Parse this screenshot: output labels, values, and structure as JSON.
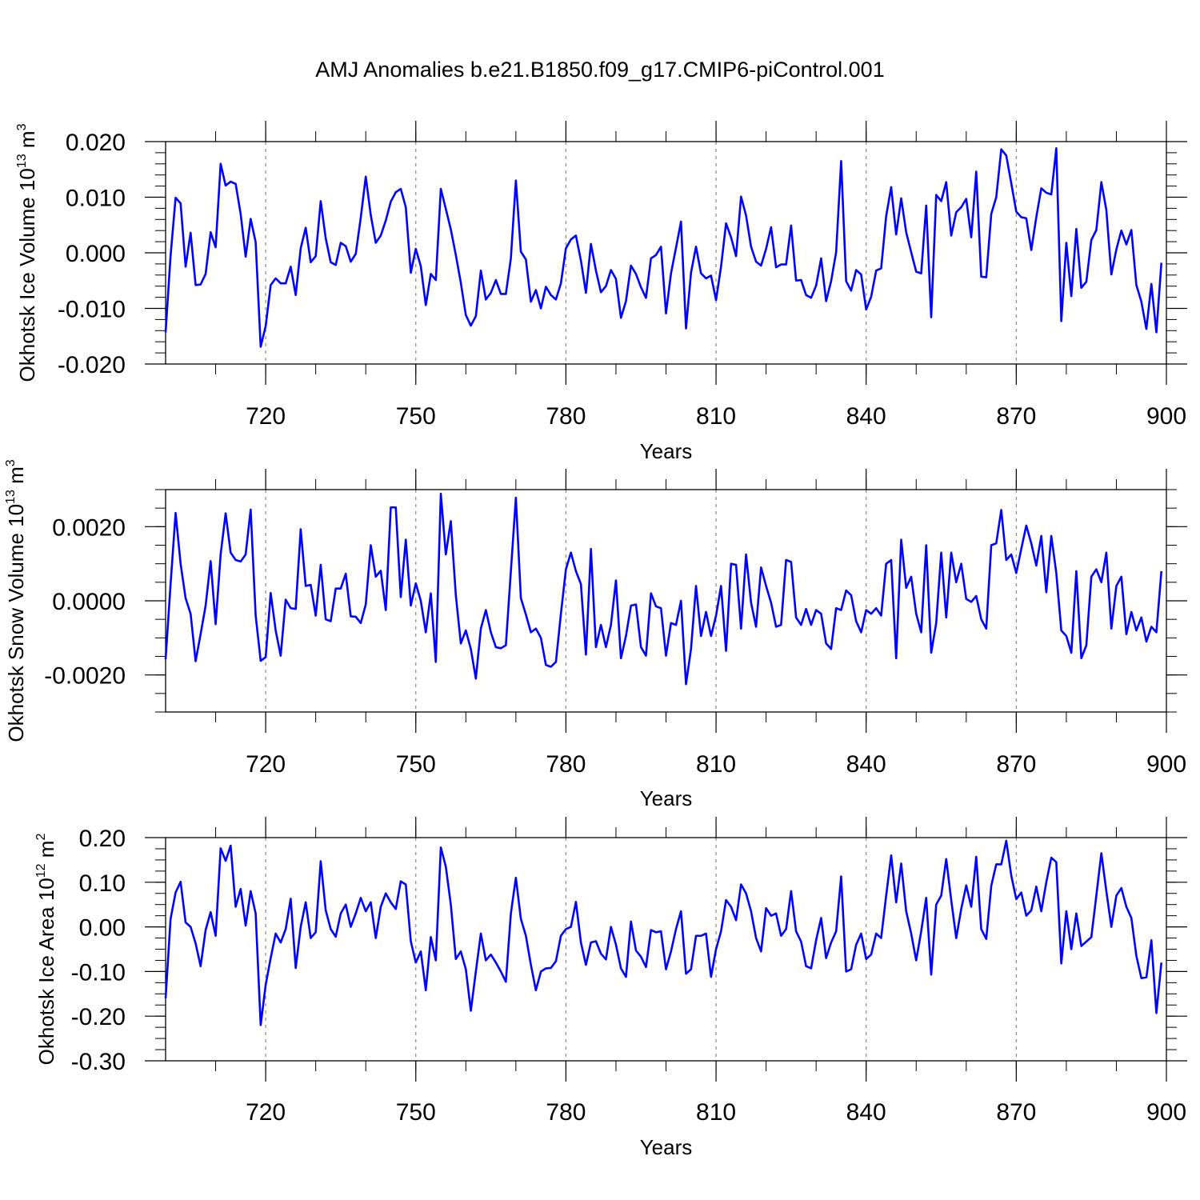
{
  "title": "AMJ Anomalies b.e21.B1850.f09_g17.CMIP6-piControl.001",
  "line_color": "#0000ff",
  "chart_data": [
    {
      "type": "line",
      "ylabel": "Okhotsk Ice Volume 10",
      "ylabel_exp": "13",
      "ylabel_unit": " m",
      "ylabel_unit_exp": "3",
      "xlabel": "Years",
      "xlim": [
        700,
        900
      ],
      "ylim": [
        -0.02,
        0.02
      ],
      "x_ticks": [
        "720",
        "750",
        "780",
        "810",
        "840",
        "870",
        "900"
      ],
      "y_ticks": [
        "0.020",
        "0.010",
        "0.000",
        "-0.010",
        "-0.020"
      ],
      "x_start": 700,
      "values": [
        -0.0143,
        -0.0005,
        0.0099,
        0.0089,
        -0.0025,
        0.0036,
        -0.0058,
        -0.0057,
        -0.0038,
        0.0037,
        0.001,
        0.016,
        0.0121,
        0.0128,
        0.0124,
        0.007,
        -0.0007,
        0.0061,
        0.0019,
        -0.0169,
        -0.0132,
        -0.0058,
        -0.0046,
        -0.0055,
        -0.0055,
        -0.0025,
        -0.0076,
        0.0008,
        0.0045,
        -0.0017,
        -0.0006,
        0.0093,
        0.0026,
        -0.0017,
        -0.0022,
        0.0018,
        0.0012,
        -0.0016,
        -0.0002,
        0.0063,
        0.0137,
        0.0068,
        0.0018,
        0.0031,
        0.0058,
        0.0092,
        0.0109,
        0.0115,
        0.0082,
        -0.0036,
        0.0007,
        -0.0024,
        -0.0094,
        -0.0038,
        -0.0049,
        0.0115,
        0.0079,
        0.0042,
        -0.0004,
        -0.0054,
        -0.0112,
        -0.0131,
        -0.0114,
        -0.0032,
        -0.0084,
        -0.0072,
        -0.0049,
        -0.0074,
        -0.0074,
        -0.001,
        0.013,
        0.0002,
        -0.0012,
        -0.0088,
        -0.0067,
        -0.01,
        -0.0061,
        -0.0076,
        -0.0084,
        -0.0055,
        0.0008,
        0.0024,
        0.0031,
        -0.0014,
        -0.0072,
        0.0016,
        -0.0032,
        -0.0071,
        -0.006,
        -0.0031,
        -0.0047,
        -0.0117,
        -0.0087,
        -0.0023,
        -0.0038,
        -0.0062,
        -0.0081,
        -0.001,
        -0.0004,
        0.0011,
        -0.0109,
        -0.0037,
        0.0009,
        0.0056,
        -0.0136,
        -0.0036,
        0.0011,
        -0.0037,
        -0.0046,
        -0.0041,
        -0.0085,
        -0.0025,
        0.0053,
        0.0028,
        -0.0006,
        0.0101,
        0.0067,
        0.0011,
        -0.0016,
        -0.0023,
        0.0007,
        0.0046,
        -0.0026,
        -0.0021,
        -0.0021,
        0.0049,
        -0.005,
        -0.0049,
        -0.0076,
        -0.0081,
        -0.0059,
        -0.001,
        -0.0087,
        -0.0051,
        0.0001,
        0.0165,
        -0.0051,
        -0.0068,
        -0.0031,
        -0.0039,
        -0.0102,
        -0.0079,
        -0.0032,
        -0.0028,
        0.0066,
        0.0118,
        0.0033,
        0.0098,
        0.0037,
        0.0001,
        -0.0034,
        -0.0037,
        0.0085,
        -0.0116,
        0.0104,
        0.0093,
        0.0127,
        0.0031,
        0.0073,
        0.0082,
        0.0097,
        0.0028,
        0.0146,
        -0.0043,
        -0.0044,
        0.007,
        0.01,
        0.0186,
        0.0175,
        0.0125,
        0.0074,
        0.0064,
        0.0062,
        0.0005,
        0.0064,
        0.0116,
        0.0108,
        0.0105,
        0.0188,
        -0.0123,
        0.0018,
        -0.0078,
        0.0043,
        -0.0063,
        -0.0052,
        0.0023,
        0.0041,
        0.0127,
        0.0077,
        -0.0039,
        0.0006,
        0.004,
        0.0015,
        0.0041,
        -0.0058,
        -0.0088,
        -0.0137,
        -0.0056,
        -0.0143,
        -0.0018
      ]
    },
    {
      "type": "line",
      "ylabel": "Okhotsk Snow Volume 10",
      "ylabel_exp": "13",
      "ylabel_unit": " m",
      "ylabel_unit_exp": "3",
      "xlabel": "Years",
      "xlim": [
        700,
        900
      ],
      "ylim": [
        -0.003,
        0.003
      ],
      "x_ticks": [
        "720",
        "750",
        "780",
        "810",
        "840",
        "870",
        "900"
      ],
      "y_ticks": [
        "0.0020",
        "0.0000",
        "-0.0020"
      ],
      "x_start": 700,
      "values": [
        -0.00158,
        0.00045,
        0.00237,
        0.001,
        7e-05,
        -0.00035,
        -0.00163,
        -0.0009,
        -0.00013,
        0.00107,
        -0.00063,
        0.00125,
        0.00236,
        0.0013,
        0.0011,
        0.00106,
        0.00125,
        0.00246,
        -0.0004,
        -0.00162,
        -0.00152,
        0.00021,
        -0.0008,
        -0.00148,
        3e-05,
        -0.0002,
        -0.00022,
        0.00193,
        0.0004,
        0.00043,
        -0.0004,
        0.00097,
        -0.0005,
        -0.00055,
        0.00033,
        0.00033,
        0.00073,
        -0.00042,
        -0.00043,
        -0.0006,
        -0.0001,
        0.0015,
        0.00065,
        0.00081,
        -0.00025,
        0.00252,
        0.00252,
        0.0001,
        0.00165,
        -0.00013,
        0.00047,
        0.0,
        -0.00085,
        0.0002,
        -0.00165,
        0.00289,
        0.00125,
        0.00215,
        0.00015,
        -0.00115,
        -0.0008,
        -0.0013,
        -0.0021,
        -0.00075,
        -0.00025,
        -0.00085,
        -0.00125,
        -0.00128,
        -0.0012,
        0.0008,
        0.00278,
        7e-05,
        -0.00037,
        -0.00085,
        -0.00075,
        -0.001,
        -0.00173,
        -0.00178,
        -0.00165,
        -0.00035,
        0.00085,
        0.0013,
        0.0008,
        0.00045,
        -0.00145,
        0.0014,
        -0.00125,
        -0.00065,
        -0.00125,
        -0.00065,
        0.00055,
        -0.00155,
        -0.00095,
        -0.00013,
        -0.0001,
        -0.00125,
        -0.00148,
        0.0002,
        -0.00015,
        -0.0002,
        -0.00148,
        -0.0006,
        -0.00065,
        0.0,
        -0.00225,
        -0.0013,
        0.0004,
        -0.00095,
        -0.0003,
        -0.00095,
        -0.0004,
        0.0004,
        -0.00135,
        0.001,
        0.00097,
        -0.00075,
        0.00125,
        -5e-05,
        -0.0007,
        0.0009,
        0.0004,
        -5e-05,
        -0.0007,
        -0.00065,
        0.0011,
        0.00105,
        -0.00045,
        -0.00065,
        -0.00022,
        -0.00065,
        -0.00025,
        -0.00035,
        -0.00115,
        -0.0013,
        -0.0002,
        -0.00025,
        0.00028,
        0.00015,
        -0.00055,
        -0.00085,
        -0.00025,
        -0.00035,
        -0.0002,
        -0.0004,
        0.001,
        0.0011,
        -0.00155,
        0.00165,
        0.00035,
        0.00065,
        -0.00035,
        -0.00085,
        0.0015,
        -0.0014,
        -0.0006,
        0.0013,
        -0.00045,
        0.0013,
        0.0005,
        0.001,
        5e-05,
        -3e-05,
        0.00013,
        -0.0005,
        -0.00075,
        0.0015,
        0.00155,
        0.00245,
        0.0011,
        0.00125,
        0.00075,
        0.0014,
        0.00203,
        0.00155,
        0.00095,
        0.00175,
        0.00023,
        0.00175,
        0.00075,
        -0.0008,
        -0.00095,
        -0.0014,
        0.0008,
        -0.00155,
        -0.0012,
        0.00065,
        0.00085,
        0.0005,
        0.0013,
        -0.00075,
        0.0004,
        0.00065,
        -0.0009,
        -0.0003,
        -0.0008,
        -0.00045,
        -0.0011,
        -0.0007,
        -0.00085,
        0.0008
      ]
    },
    {
      "type": "line",
      "ylabel": "Okhotsk Ice Area 10",
      "ylabel_exp": "12",
      "ylabel_unit": " m",
      "ylabel_unit_exp": "2",
      "xlabel": "Years",
      "xlim": [
        700,
        900
      ],
      "ylim": [
        -0.3,
        0.2
      ],
      "x_ticks": [
        "720",
        "750",
        "780",
        "810",
        "840",
        "870",
        "900"
      ],
      "y_ticks": [
        "0.20",
        "0.10",
        "0.00",
        "-0.10",
        "-0.20",
        "-0.30"
      ],
      "x_start": 700,
      "values": [
        -0.16,
        0.018,
        0.077,
        0.101,
        0.01,
        0.0,
        -0.037,
        -0.088,
        -0.007,
        0.033,
        -0.02,
        0.176,
        0.148,
        0.182,
        0.045,
        0.085,
        0.003,
        0.08,
        0.03,
        -0.22,
        -0.13,
        -0.07,
        -0.015,
        -0.035,
        -0.005,
        0.063,
        -0.092,
        0.0,
        0.055,
        -0.025,
        -0.012,
        0.147,
        0.037,
        -0.005,
        -0.022,
        0.03,
        0.05,
        0.0,
        0.03,
        0.065,
        0.035,
        0.055,
        -0.025,
        0.045,
        0.075,
        0.055,
        0.04,
        0.102,
        0.095,
        -0.032,
        -0.08,
        -0.055,
        -0.142,
        -0.023,
        -0.075,
        0.178,
        0.135,
        0.05,
        -0.072,
        -0.055,
        -0.095,
        -0.188,
        -0.1,
        -0.015,
        -0.075,
        -0.062,
        -0.08,
        -0.1,
        -0.123,
        0.03,
        0.11,
        0.018,
        -0.02,
        -0.085,
        -0.142,
        -0.1,
        -0.093,
        -0.092,
        -0.077,
        -0.02,
        -0.005,
        0.0,
        0.056,
        -0.035,
        -0.085,
        -0.035,
        -0.032,
        -0.06,
        -0.073,
        0.0,
        -0.04,
        -0.093,
        -0.112,
        0.012,
        -0.053,
        -0.067,
        -0.09,
        -0.007,
        -0.012,
        -0.01,
        -0.095,
        -0.055,
        -0.005,
        0.035,
        -0.105,
        -0.095,
        -0.02,
        -0.02,
        -0.015,
        -0.112,
        -0.05,
        -0.01,
        0.06,
        0.045,
        0.015,
        0.095,
        0.075,
        0.035,
        -0.025,
        -0.055,
        0.042,
        0.025,
        0.03,
        -0.02,
        -0.005,
        0.08,
        -0.01,
        -0.033,
        -0.088,
        -0.093,
        -0.03,
        0.02,
        -0.07,
        -0.035,
        -0.01,
        0.113,
        -0.1,
        -0.095,
        -0.04,
        -0.015,
        -0.072,
        -0.062,
        -0.015,
        -0.025,
        0.07,
        0.16,
        0.055,
        0.142,
        0.035,
        -0.015,
        -0.075,
        -0.01,
        0.065,
        -0.107,
        0.05,
        0.07,
        0.152,
        0.06,
        -0.025,
        0.04,
        0.093,
        0.045,
        0.157,
        -0.005,
        -0.027,
        0.092,
        0.14,
        0.14,
        0.193,
        0.115,
        0.062,
        0.077,
        0.025,
        0.037,
        0.09,
        0.035,
        0.1,
        0.155,
        0.145,
        -0.082,
        0.035,
        -0.05,
        0.03,
        -0.043,
        -0.033,
        -0.023,
        0.07,
        0.165,
        0.08,
        0.0,
        0.07,
        0.087,
        0.045,
        0.02,
        -0.065,
        -0.115,
        -0.113,
        -0.03,
        -0.193,
        -0.08
      ]
    }
  ]
}
